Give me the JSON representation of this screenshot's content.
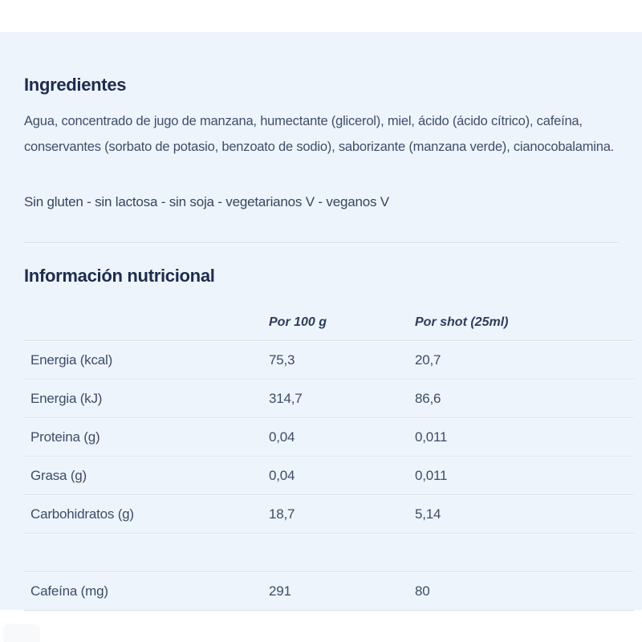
{
  "colors": {
    "card_background": "#edf4fb",
    "heading_text": "#1f2b4d",
    "body_text": "#3f4e68",
    "divider": "#dbe2ec"
  },
  "ingredients": {
    "title": "Ingredientes",
    "line1": "Agua, concentrado de jugo de manzana, humectante (glicerol), miel, ácido (ácido cítrico), cafeína,",
    "line2": "conservantes (sorbato de potasio, benzoato de sodio), saborizante (manzana verde), cianocobalamina.",
    "dietary": "Sin gluten - sin lactosa - sin soja - vegetarianos V - veganos V"
  },
  "nutrition": {
    "title": "Información nutricional",
    "columns": {
      "label": "",
      "per100g": "Por 100 g",
      "per_shot": "Por shot (25ml)"
    },
    "rows": [
      {
        "label": "Energia (kcal)",
        "per100g": "75,3",
        "per_shot": "20,7"
      },
      {
        "label": "Energia (kJ)",
        "per100g": "314,7",
        "per_shot": "86,6"
      },
      {
        "label": "Proteina (g)",
        "per100g": "0,04",
        "per_shot": "0,011"
      },
      {
        "label": "Grasa (g)",
        "per100g": "0,04",
        "per_shot": "0,011"
      },
      {
        "label": "Carbohidratos (g)",
        "per100g": "18,7",
        "per_shot": "5,14"
      },
      {
        "label": "",
        "per100g": "",
        "per_shot": ""
      },
      {
        "label": "Cafeína (mg)",
        "per100g": "291",
        "per_shot": "80"
      }
    ]
  }
}
